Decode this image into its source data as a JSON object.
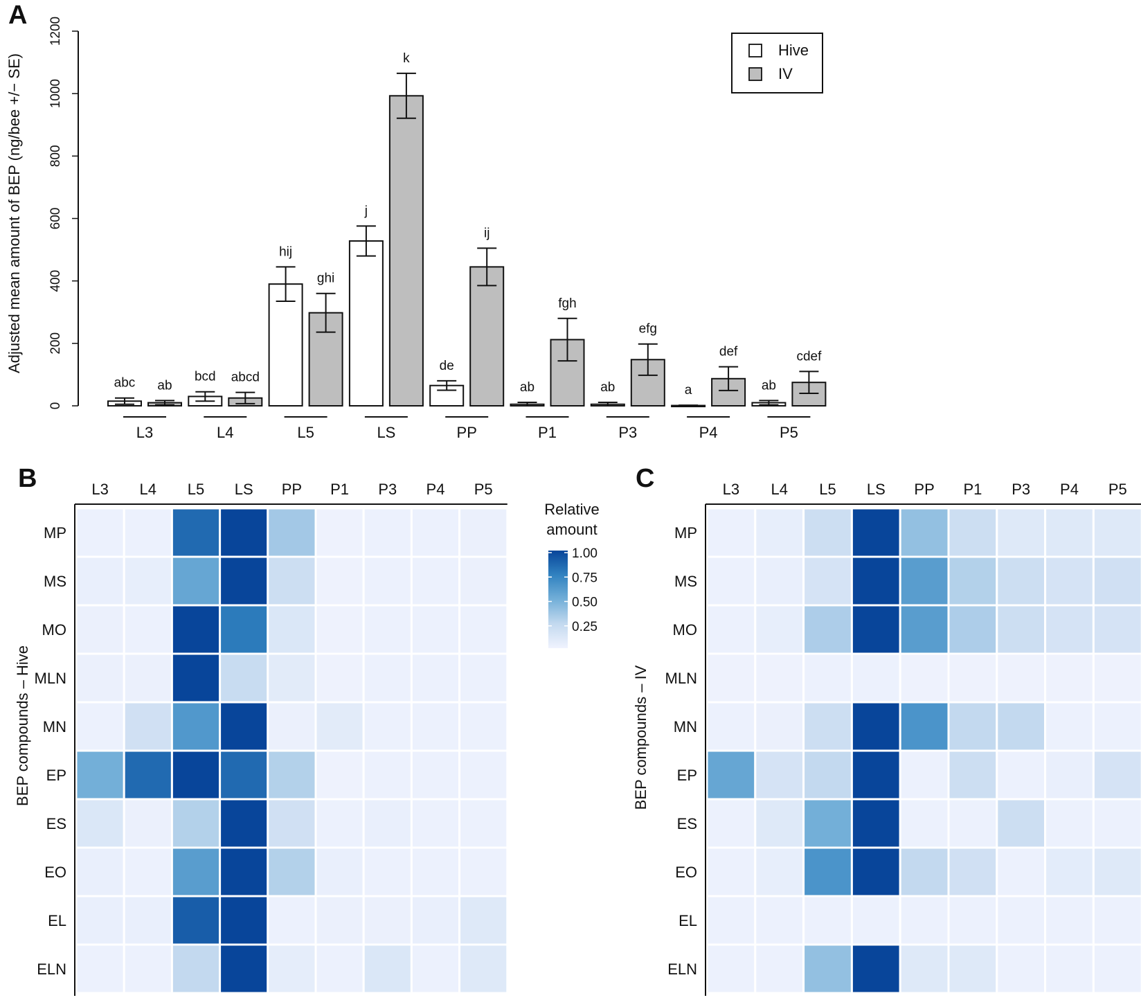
{
  "panels": {
    "a": "A",
    "b": "B",
    "c": "C"
  },
  "chart_data": [
    {
      "type": "bar",
      "panel": "A",
      "ylabel": "Adjusted mean amount of BEP (ng/bee +/− SE)",
      "ylim": [
        0,
        1200
      ],
      "yticks": [
        0,
        200,
        400,
        600,
        800,
        1000,
        1200
      ],
      "categories": [
        "L3",
        "L4",
        "L5",
        "LS",
        "PP",
        "P1",
        "P3",
        "P4",
        "P5"
      ],
      "legend": {
        "position": "top-right",
        "entries": [
          "Hive",
          "IV"
        ]
      },
      "series": [
        {
          "name": "Hive",
          "color": "#ffffff",
          "values": [
            15,
            30,
            390,
            528,
            65,
            5,
            5,
            1,
            10
          ],
          "se": [
            10,
            15,
            55,
            48,
            15,
            6,
            6,
            1,
            7
          ],
          "letters": [
            "abc",
            "bcd",
            "hij",
            "j",
            "de",
            "ab",
            "ab",
            "a",
            "ab"
          ]
        },
        {
          "name": "IV",
          "color": "#bebebe",
          "values": [
            10,
            25,
            298,
            993,
            445,
            212,
            148,
            87,
            75
          ],
          "se": [
            7,
            18,
            62,
            72,
            60,
            68,
            50,
            38,
            35
          ],
          "letters": [
            "ab",
            "abcd",
            "ghi",
            "k",
            "ij",
            "fgh",
            "efg",
            "def",
            "cdef"
          ]
        }
      ]
    },
    {
      "type": "heatmap",
      "panel": "B",
      "ylabel": "BEP compounds – Hive",
      "columns": [
        "L3",
        "L4",
        "L5",
        "LS",
        "PP",
        "P1",
        "P3",
        "P4",
        "P5"
      ],
      "rows": [
        "MP",
        "MS",
        "MO",
        "MLN",
        "MN",
        "EP",
        "ES",
        "EO",
        "EL",
        "ELN"
      ],
      "values": [
        [
          0.02,
          0.02,
          0.85,
          1.0,
          0.35,
          0.01,
          0.02,
          0.02,
          0.03
        ],
        [
          0.04,
          0.05,
          0.55,
          1.0,
          0.2,
          0.01,
          0.02,
          0.02,
          0.03
        ],
        [
          0.03,
          0.02,
          1.0,
          0.78,
          0.12,
          0.01,
          0.02,
          0.02,
          0.02
        ],
        [
          0.03,
          0.03,
          1.0,
          0.22,
          0.08,
          0.01,
          0.02,
          0.02,
          0.02
        ],
        [
          0.02,
          0.18,
          0.63,
          1.0,
          0.03,
          0.08,
          0.02,
          0.02,
          0.02
        ],
        [
          0.5,
          0.85,
          1.0,
          0.85,
          0.3,
          0.01,
          0.02,
          0.02,
          0.02
        ],
        [
          0.12,
          0.03,
          0.3,
          1.0,
          0.18,
          0.02,
          0.04,
          0.02,
          0.02
        ],
        [
          0.04,
          0.02,
          0.6,
          1.0,
          0.3,
          0.04,
          0.02,
          0.02,
          0.02
        ],
        [
          0.04,
          0.04,
          0.9,
          1.0,
          0.02,
          0.03,
          0.03,
          0.04,
          0.1
        ],
        [
          0.02,
          0.02,
          0.25,
          1.0,
          0.06,
          0.02,
          0.12,
          0.02,
          0.1
        ]
      ]
    },
    {
      "type": "heatmap",
      "panel": "C",
      "ylabel": "BEP compounds – IV",
      "columns": [
        "L3",
        "L4",
        "L5",
        "LS",
        "PP",
        "P1",
        "P3",
        "P4",
        "P5"
      ],
      "rows": [
        "MP",
        "MS",
        "MO",
        "MLN",
        "MN",
        "EP",
        "ES",
        "EO",
        "EL",
        "ELN"
      ],
      "values": [
        [
          0.02,
          0.05,
          0.2,
          1.0,
          0.4,
          0.2,
          0.1,
          0.1,
          0.1
        ],
        [
          0.02,
          0.04,
          0.15,
          1.0,
          0.6,
          0.3,
          0.2,
          0.15,
          0.18
        ],
        [
          0.02,
          0.05,
          0.32,
          1.0,
          0.6,
          0.32,
          0.2,
          0.15,
          0.15
        ],
        [
          0.01,
          0.01,
          0.02,
          0.02,
          0.01,
          0.01,
          0.01,
          0.01,
          0.01
        ],
        [
          0.02,
          0.03,
          0.2,
          1.0,
          0.65,
          0.25,
          0.25,
          0.02,
          0.02
        ],
        [
          0.55,
          0.15,
          0.25,
          1.0,
          0.02,
          0.2,
          0.02,
          0.04,
          0.15
        ],
        [
          0.02,
          0.1,
          0.5,
          1.0,
          0.02,
          0.02,
          0.2,
          0.02,
          0.02
        ],
        [
          0.02,
          0.05,
          0.65,
          1.0,
          0.25,
          0.18,
          0.02,
          0.07,
          0.1
        ],
        [
          0.02,
          0.02,
          0.02,
          0.02,
          0.02,
          0.02,
          0.02,
          0.02,
          0.02
        ],
        [
          0.02,
          0.02,
          0.4,
          1.0,
          0.1,
          0.1,
          0.02,
          0.02,
          0.02
        ]
      ]
    }
  ],
  "colorbar": {
    "title_line1": "Relative",
    "title_line2": "amount",
    "ticks": [
      "1.00",
      "0.75",
      "0.50",
      "0.25"
    ],
    "low_color": "#f0f3fe",
    "high_color": "#08459a"
  }
}
